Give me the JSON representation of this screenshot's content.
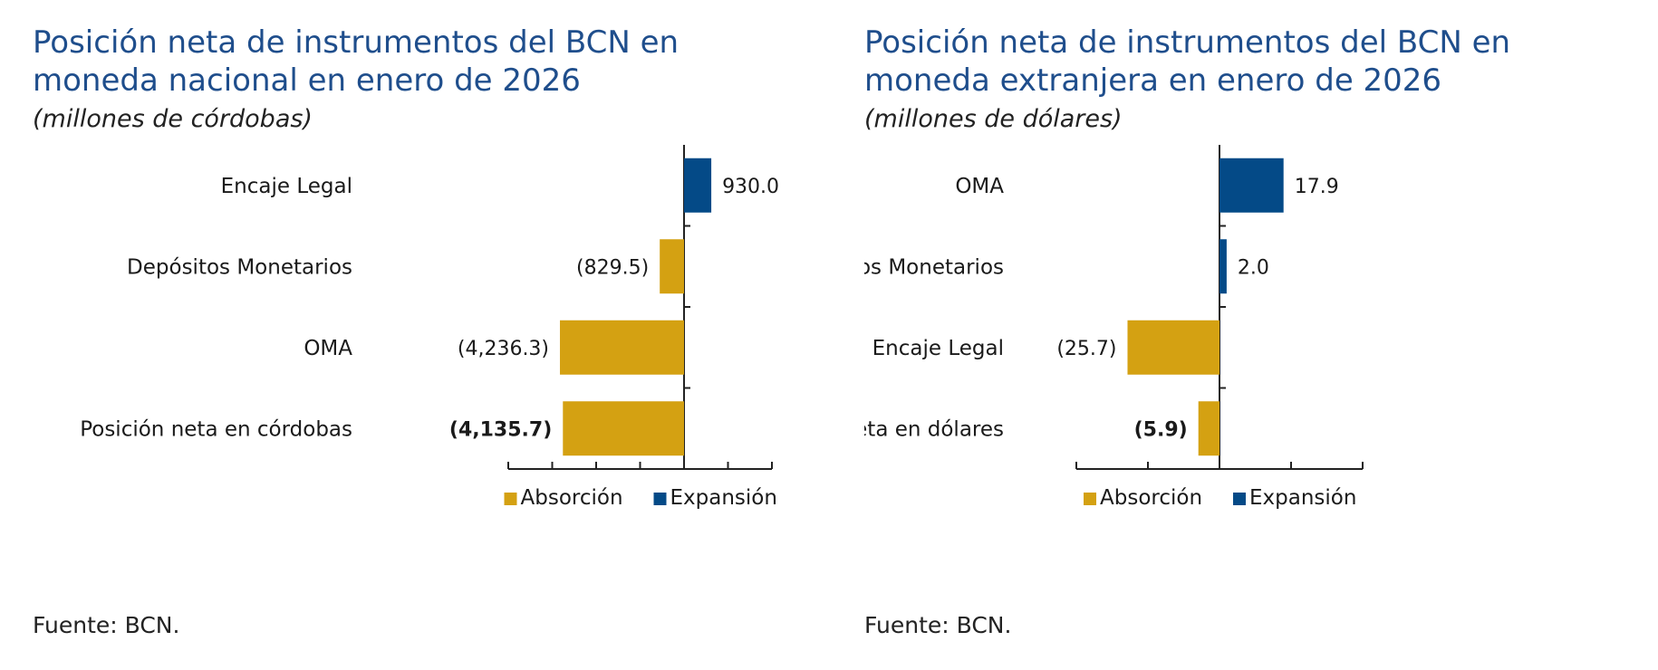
{
  "chart_data": [
    {
      "type": "bar",
      "orientation": "horizontal",
      "title": "Posición neta de instrumentos del BCN en moneda nacional en enero de 2026",
      "subtitle": "(millones de córdobas)",
      "categories": [
        "Encaje Legal",
        "Depósitos Monetarios",
        "OMA",
        "Posición neta en córdobas"
      ],
      "values": [
        930.0,
        -829.5,
        -4236.3,
        -4135.7
      ],
      "value_labels": [
        "930.0",
        "(829.5)",
        "(4,236.3)",
        "(4,135.7)"
      ],
      "bold_labels": [
        false,
        false,
        false,
        true
      ],
      "series_colors": [
        "expansion",
        "absorption",
        "absorption",
        "absorption"
      ],
      "xlim": [
        -6000,
        3000
      ],
      "xticks": [
        -6000,
        -4500,
        -3000,
        -1500,
        0,
        1500,
        3000
      ],
      "legend": [
        "Absorción",
        "Expansión"
      ],
      "legend_position": "bottom",
      "source": "Fuente: BCN."
    },
    {
      "type": "bar",
      "orientation": "horizontal",
      "title": "Posición neta de instrumentos del BCN en moneda extranjera en enero de 2026",
      "subtitle": "(millones de dólares)",
      "categories": [
        "OMA",
        "Depósitos Monetarios",
        "Encaje Legal",
        "Posición neta en dólares"
      ],
      "values": [
        17.9,
        2.0,
        -25.7,
        -5.9
      ],
      "value_labels": [
        "17.9",
        "2.0",
        "(25.7)",
        "(5.9)"
      ],
      "bold_labels": [
        false,
        false,
        false,
        true
      ],
      "series_colors": [
        "expansion",
        "expansion",
        "absorption",
        "absorption"
      ],
      "xlim": [
        -40,
        40
      ],
      "xticks": [
        -40,
        -20,
        0,
        20,
        40
      ],
      "legend": [
        "Absorción",
        "Expansión"
      ],
      "legend_position": "bottom",
      "source": "Fuente: BCN."
    }
  ],
  "colors": {
    "absorption": "#d4a112",
    "expansion": "#044a87",
    "title": "#1f4e8c"
  }
}
